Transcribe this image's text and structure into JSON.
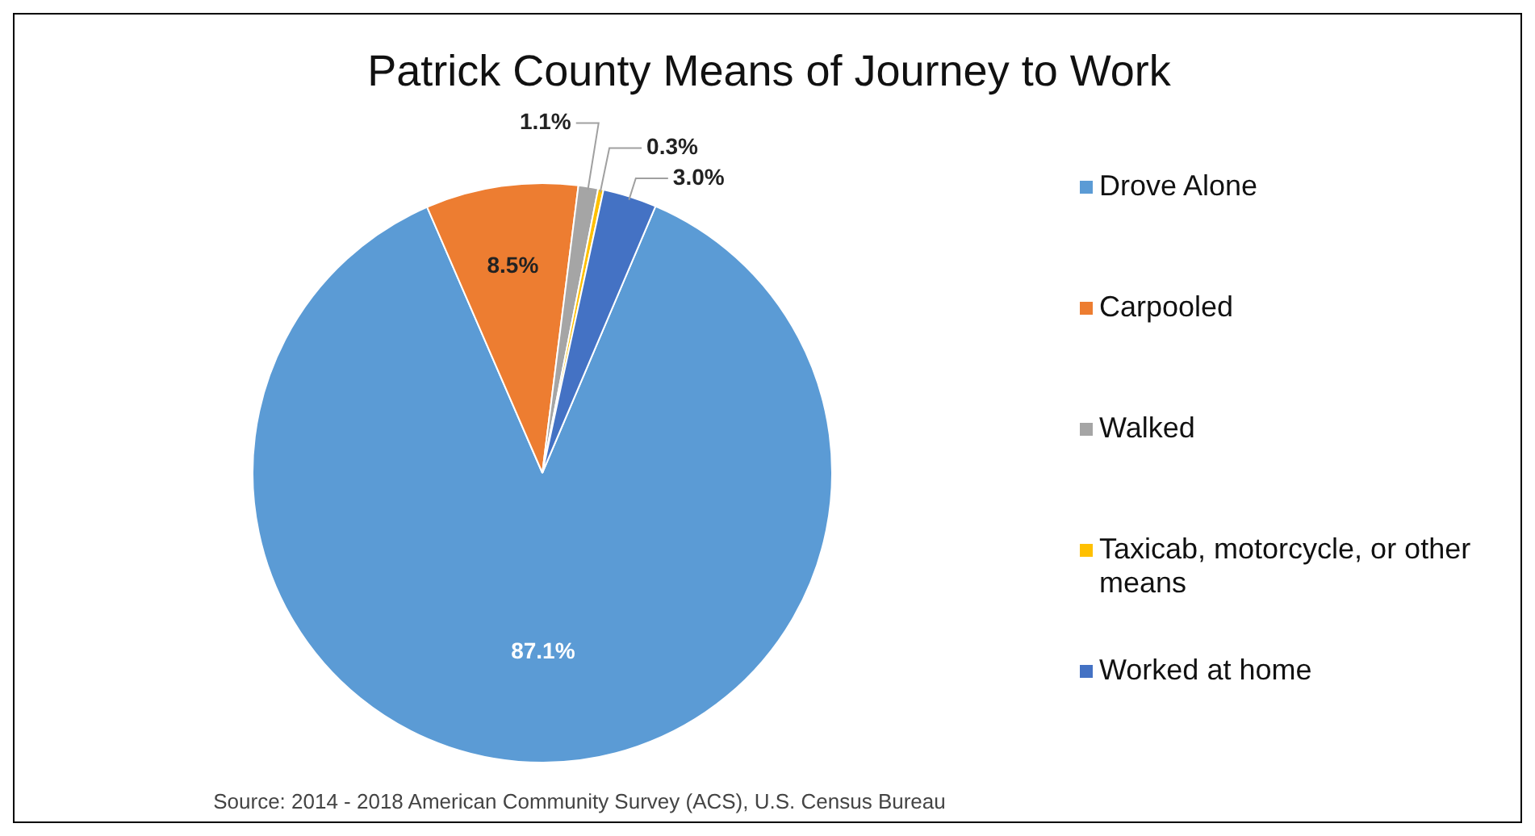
{
  "chart_data": {
    "type": "pie",
    "title": "Patrick County Means of Journey to Work",
    "categories": [
      "Drove Alone",
      "Carpooled",
      "Walked",
      "Taxicab, motorcycle, or other means",
      "Worked at home"
    ],
    "values": [
      87.1,
      8.5,
      1.1,
      0.3,
      3.0
    ],
    "colors": [
      "#5b9bd5",
      "#ed7d31",
      "#a5a5a5",
      "#ffc000",
      "#4472c4"
    ],
    "value_labels": [
      "87.1%",
      "8.5%",
      "1.1%",
      "0.3%",
      "3.0%"
    ],
    "legend": "right",
    "annotations": [
      "Source:  2014 - 2018 American Community Survey (ACS), U.S. Census Bureau"
    ]
  }
}
